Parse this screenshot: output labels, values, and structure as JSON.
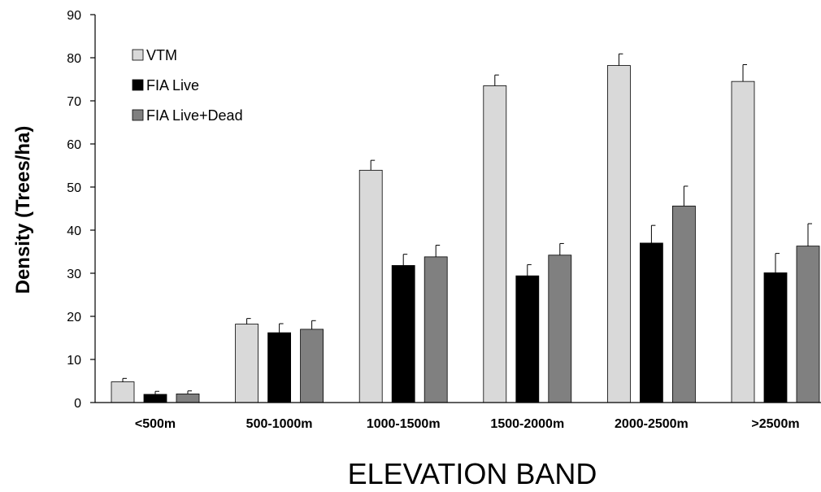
{
  "chart_data": {
    "type": "bar",
    "title": "",
    "xlabel": "ELEVATION BAND",
    "ylabel": "Density (Trees/ha)",
    "ylim": [
      0,
      90
    ],
    "yticks": [
      0,
      10,
      20,
      30,
      40,
      50,
      60,
      70,
      80,
      90
    ],
    "grid": false,
    "legend_position": "top-left",
    "categories": [
      "<500m",
      "500-1000m",
      "1000-1500m",
      "1500-2000m",
      "2000-2500m",
      ">2500m"
    ],
    "series": [
      {
        "name": "VTM",
        "color": "#d9d9d9",
        "values": [
          4.8,
          18.2,
          53.9,
          73.5,
          78.2,
          74.5
        ],
        "error": [
          0.8,
          1.3,
          2.3,
          2.5,
          2.7,
          3.9
        ]
      },
      {
        "name": "FIA Live",
        "color": "#000000",
        "values": [
          1.9,
          16.2,
          31.8,
          29.4,
          37.0,
          30.1
        ],
        "error": [
          0.7,
          2.1,
          2.6,
          2.6,
          4.1,
          4.5
        ]
      },
      {
        "name": "FIA Live+Dead",
        "color": "#808080",
        "values": [
          2.0,
          17.0,
          33.8,
          34.2,
          45.6,
          36.3
        ],
        "error": [
          0.7,
          2.0,
          2.7,
          2.7,
          4.6,
          5.2
        ]
      }
    ]
  }
}
